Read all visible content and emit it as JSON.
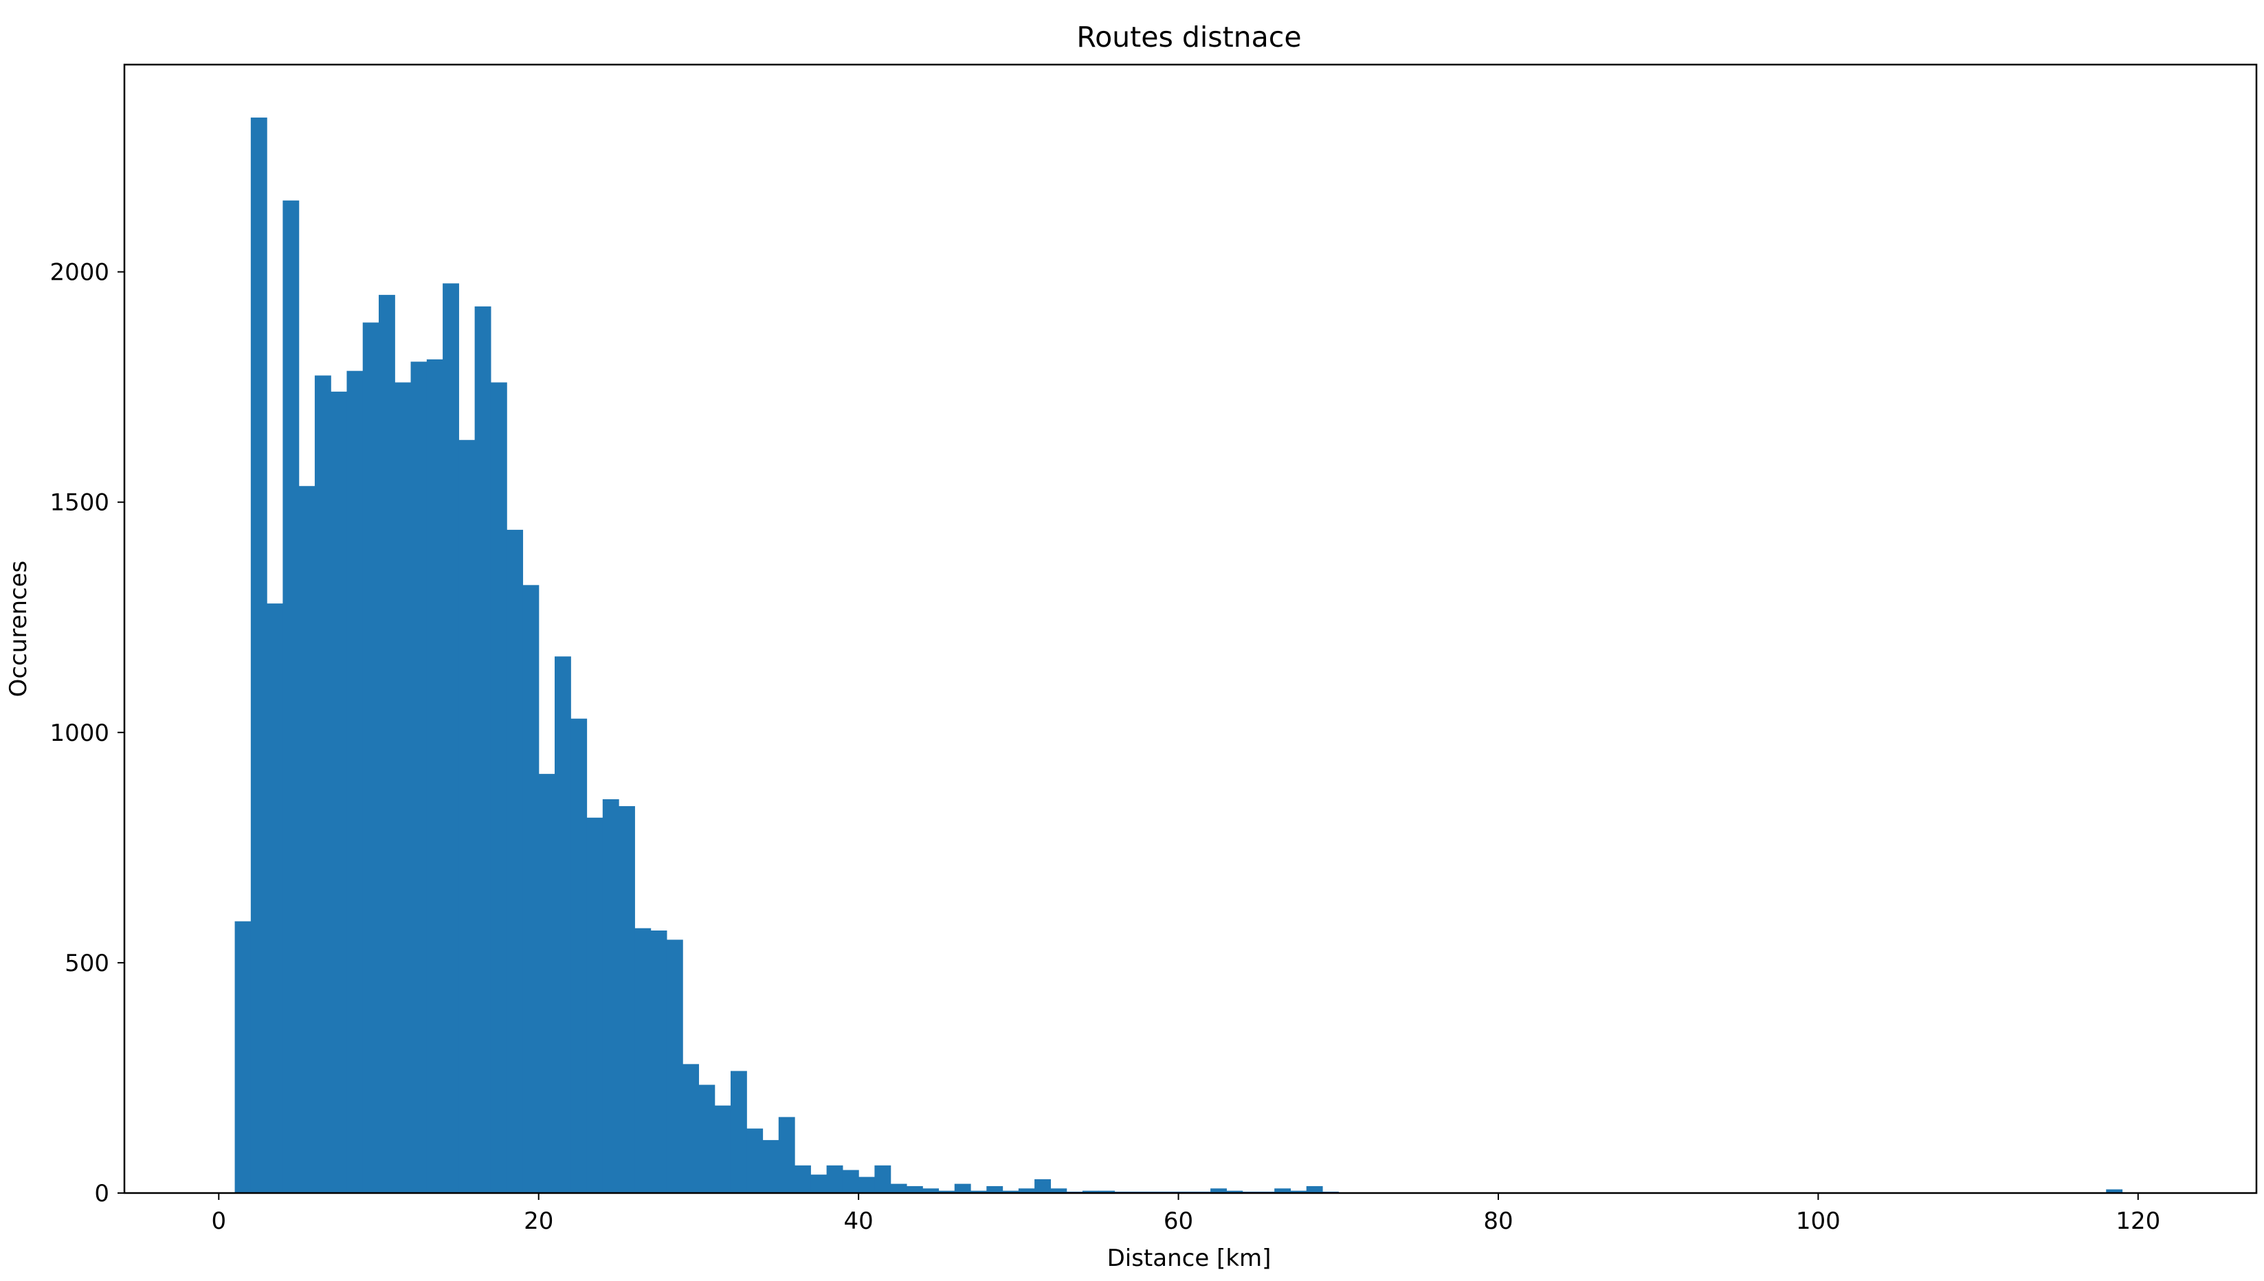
{
  "colors": {
    "bar": "#2077b4",
    "axis": "#000000",
    "background": "#ffffff"
  },
  "chart_data": {
    "type": "bar",
    "title": "Routes distnace",
    "xlabel": "Distance [km]",
    "ylabel": "Occurences",
    "xlim": [
      -5.9,
      127.4
    ],
    "ylim": [
      0,
      2450
    ],
    "xticks": [
      0,
      20,
      40,
      60,
      80,
      100,
      120
    ],
    "yticks": [
      0,
      500,
      1000,
      1500,
      2000
    ],
    "grid": false,
    "legend": "none",
    "bin_width": 1.0,
    "series": [
      {
        "x": [
          1,
          2,
          3,
          4,
          5,
          6,
          7,
          8,
          9,
          10,
          11,
          12,
          13,
          14,
          15,
          16,
          17,
          18,
          19,
          20,
          21,
          22,
          23,
          24,
          25,
          26,
          27,
          28,
          29,
          30,
          31,
          32,
          33,
          34,
          35,
          36,
          37,
          38,
          39,
          40,
          41,
          42,
          43,
          44,
          45,
          46,
          47,
          48,
          49,
          50,
          51,
          52,
          53,
          54,
          55,
          56,
          57,
          58,
          59,
          60,
          61,
          62,
          63,
          64,
          65,
          66,
          67,
          68,
          69,
          70,
          71,
          72,
          73,
          74,
          75,
          76,
          77,
          78,
          79,
          80,
          81,
          82,
          83,
          84,
          85,
          86,
          87,
          88,
          89,
          90,
          91,
          92,
          93,
          94,
          95,
          96,
          97,
          98,
          99,
          100,
          101,
          102,
          103,
          104,
          105,
          106,
          107,
          108,
          109,
          110,
          111,
          112,
          113,
          114,
          115,
          116,
          117,
          118,
          119
        ],
        "values": [
          590,
          2335,
          1280,
          2155,
          1535,
          1775,
          1740,
          1785,
          1890,
          1950,
          1760,
          1805,
          1810,
          1975,
          1635,
          1925,
          1760,
          1440,
          1320,
          910,
          1165,
          1030,
          815,
          855,
          840,
          575,
          570,
          550,
          280,
          235,
          190,
          265,
          140,
          115,
          165,
          60,
          40,
          60,
          50,
          35,
          60,
          20,
          15,
          10,
          5,
          20,
          5,
          15,
          5,
          10,
          30,
          10,
          3,
          5,
          5,
          3,
          3,
          3,
          3,
          3,
          3,
          10,
          5,
          3,
          3,
          10,
          5,
          15,
          3,
          0,
          0,
          0,
          0,
          0,
          0,
          0,
          0,
          0,
          0,
          0,
          0,
          0,
          0,
          0,
          0,
          0,
          0,
          0,
          0,
          0,
          0,
          0,
          0,
          0,
          0,
          0,
          0,
          0,
          0,
          0,
          0,
          0,
          0,
          0,
          0,
          0,
          0,
          0,
          0,
          0,
          0,
          0,
          0,
          0,
          0,
          0,
          0,
          8,
          0
        ]
      }
    ]
  }
}
